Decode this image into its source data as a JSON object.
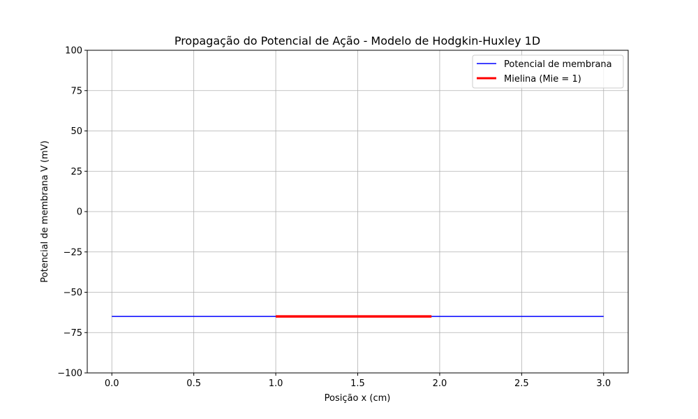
{
  "chart_data": {
    "type": "line",
    "title": "Propagação do Potencial de Ação - Modelo de Hodgkin-Huxley 1D",
    "xlabel": "Posição x (cm)",
    "ylabel": "Potencial de membrana V (mV)",
    "xlim": [
      -0.15,
      3.15
    ],
    "ylim": [
      -100,
      100
    ],
    "xticks": [
      0.0,
      0.5,
      1.0,
      1.5,
      2.0,
      2.5,
      3.0
    ],
    "xtick_labels": [
      "0.0",
      "0.5",
      "1.0",
      "1.5",
      "2.0",
      "2.5",
      "3.0"
    ],
    "yticks": [
      100,
      75,
      50,
      25,
      0,
      -25,
      -50,
      -75,
      -100
    ],
    "ytick_labels": [
      "100",
      "75",
      "50",
      "25",
      "0",
      "−25",
      "−50",
      "−75",
      "−100"
    ],
    "grid": true,
    "legend_position": "top-right",
    "series": [
      {
        "name": "Potencial de membrana",
        "color": "#0000ff",
        "x": [
          0.0,
          3.0
        ],
        "y": [
          -65,
          -65
        ]
      },
      {
        "name": "Mielina (Mie = 1)",
        "color": "#ff0000",
        "x": [
          1.0,
          1.95
        ],
        "y": [
          -65,
          -65
        ]
      }
    ]
  }
}
